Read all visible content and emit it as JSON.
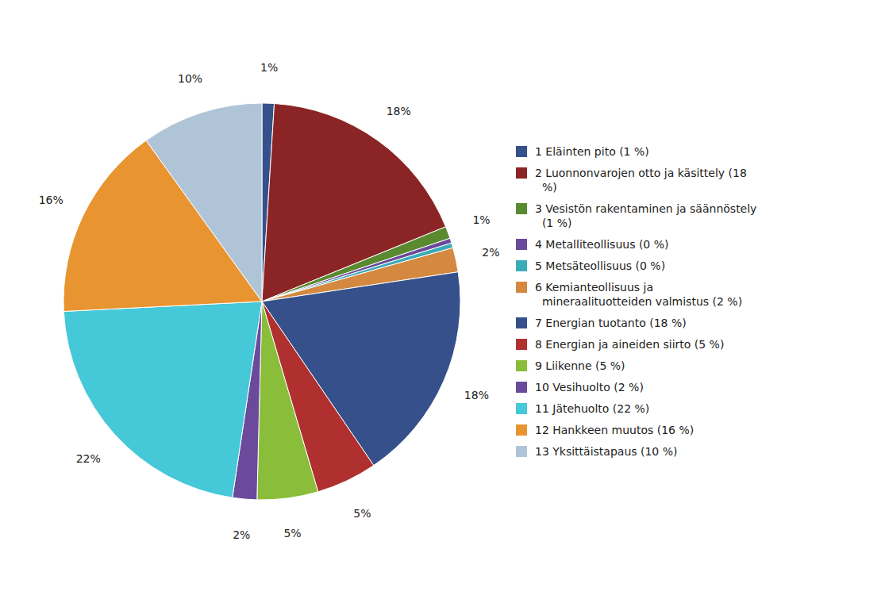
{
  "chart_data": {
    "type": "pie",
    "categories": [
      "1 Eläinten pito (1 %)",
      "2 Luonnonvarojen otto ja käsittely (18\n  %)",
      "3 Vesistön rakentaminen ja säännöstely\n  (1 %)",
      "4 Metalliteollisuus (0 %)",
      "5 Metsäteollisuus (0 %)",
      "6 Kemianteollisuus ja\n  mineraalituotteiden valmistus (2 %)",
      "7 Energian tuotanto (18 %)",
      "8 Energian ja aineiden siirto (5 %)",
      "9 Liikenne (5 %)",
      "10 Vesihuolto (2 %)",
      "11 Jätehuolto (22 %)",
      "12 Hankkeen muutos (16 %)",
      "13 Yksittäistapaus (10 %)"
    ],
    "values": [
      1,
      18,
      1,
      0.4,
      0.4,
      2,
      18,
      5,
      5,
      2,
      22,
      16,
      10
    ],
    "value_labels": [
      "1%",
      "18%",
      "1%",
      null,
      null,
      "2%",
      "18%",
      "5%",
      "5%",
      "2%",
      "22%",
      "16%",
      "10%"
    ],
    "colors": [
      "#35508A",
      "#8B2525",
      "#5A8A30",
      "#6B4A9B",
      "#3AABB8",
      "#D48840",
      "#35508A",
      "#B03030",
      "#8ABD3A",
      "#6B4A9B",
      "#45C8D8",
      "#E89430",
      "#B0C4D8"
    ],
    "data_labels": true,
    "legend": "right"
  }
}
